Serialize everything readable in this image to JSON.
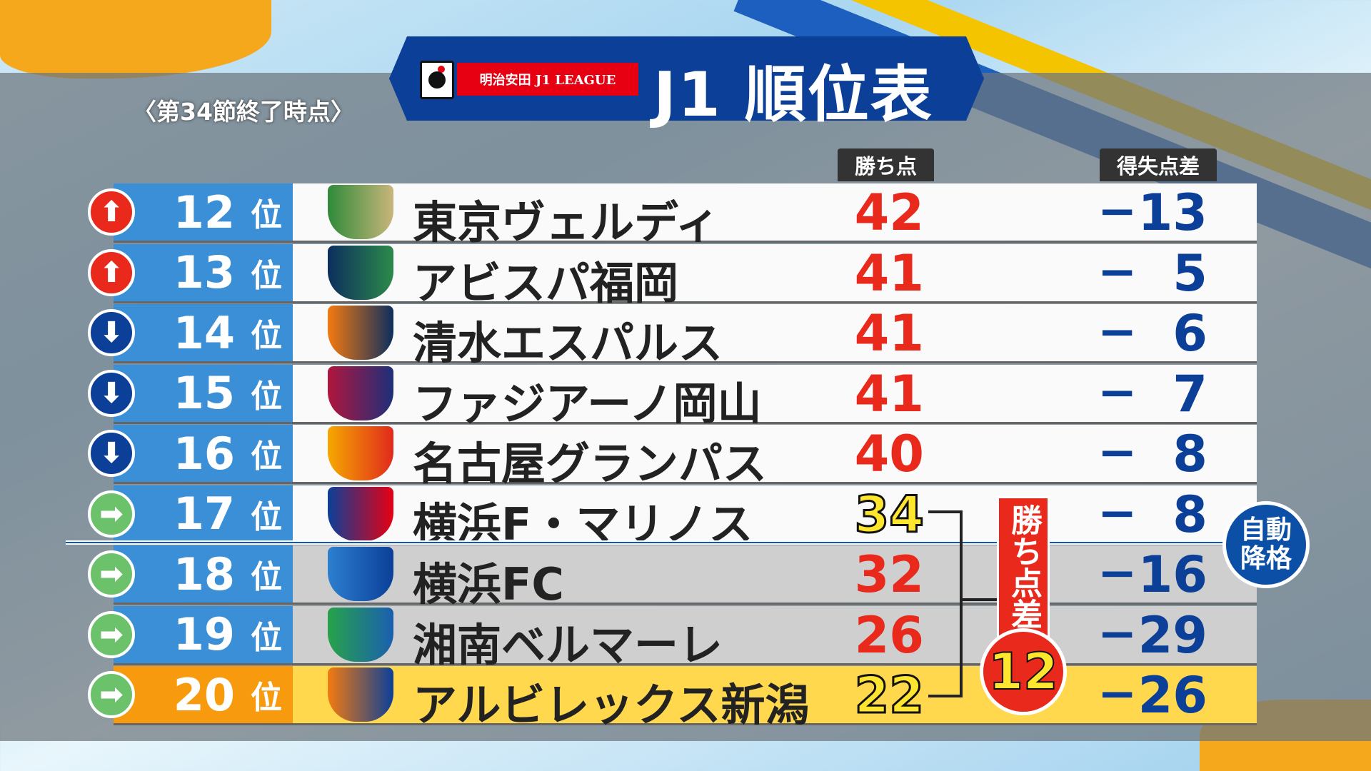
{
  "header": {
    "league_label": "明治安田 J1 LEAGUE",
    "title": "J1 順位表",
    "subtitle": "〈第34節終了時点〉"
  },
  "columns": {
    "points": "勝ち点",
    "goal_diff": "得失点差"
  },
  "rank_suffix": "位",
  "rows": [
    {
      "rank": "12",
      "team": "東京ヴェルディ",
      "points": "42",
      "goal_diff": "13",
      "trend": "up"
    },
    {
      "rank": "13",
      "team": "アビスパ福岡",
      "points": "41",
      "goal_diff": "5",
      "trend": "up"
    },
    {
      "rank": "14",
      "team": "清水エスパルス",
      "points": "41",
      "goal_diff": "6",
      "trend": "down"
    },
    {
      "rank": "15",
      "team": "ファジアーノ岡山",
      "points": "41",
      "goal_diff": "7",
      "trend": "down"
    },
    {
      "rank": "16",
      "team": "名古屋グランパス",
      "points": "40",
      "goal_diff": "8",
      "trend": "down"
    },
    {
      "rank": "17",
      "team": "横浜F・マリノス",
      "points": "34",
      "goal_diff": "8",
      "trend": "same"
    },
    {
      "rank": "18",
      "team": "横浜FC",
      "points": "32",
      "goal_diff": "16",
      "trend": "same"
    },
    {
      "rank": "19",
      "team": "湘南ベルマーレ",
      "points": "26",
      "goal_diff": "29",
      "trend": "same"
    },
    {
      "rank": "20",
      "team": "アルビレックス新潟",
      "points": "22",
      "goal_diff": "26",
      "trend": "same"
    }
  ],
  "goal_diff_sign": "−",
  "annotation": {
    "label": "勝ち点差",
    "value": "12"
  },
  "relegation": {
    "line1": "自動",
    "line2": "降格"
  },
  "colors": {
    "up": "#e8291c",
    "down": "#0b3f98",
    "same": "#6cc26a",
    "rank_bg": "#3a8fd6",
    "accent": "#0b3f98"
  }
}
